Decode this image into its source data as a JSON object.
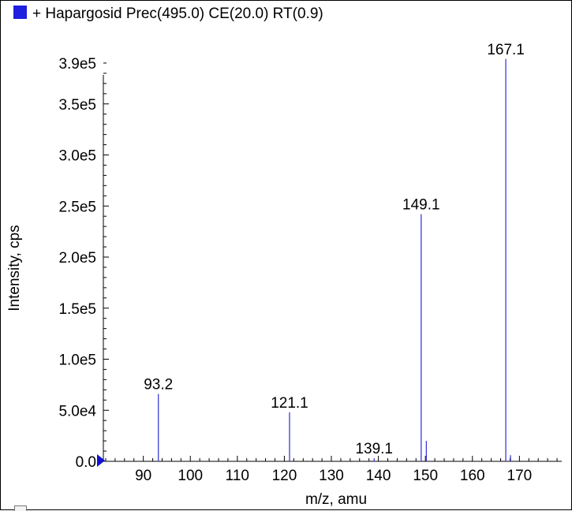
{
  "legend": {
    "label": "+ Hapargosid Prec(495.0) CE(20.0) RT(0.9)",
    "marker_color": "#1f1fe0"
  },
  "colors": {
    "peak": "#3d3dd4",
    "axis": "#000000",
    "triangle": "#1010d0"
  },
  "chart_data": {
    "type": "bar",
    "title": "+ Hapargosid Prec(495.0) CE(20.0) RT(0.9)",
    "xlabel": "m/z, amu",
    "ylabel": "Intensity, cps",
    "xlim": [
      81.5,
      179
    ],
    "ylim": [
      0,
      400000
    ],
    "x_ticks": [
      {
        "value": 90,
        "label": "90"
      },
      {
        "value": 100,
        "label": "100"
      },
      {
        "value": 110,
        "label": "110"
      },
      {
        "value": 120,
        "label": "120"
      },
      {
        "value": 130,
        "label": "130"
      },
      {
        "value": 140,
        "label": "140"
      },
      {
        "value": 150,
        "label": "150"
      },
      {
        "value": 160,
        "label": "160"
      },
      {
        "value": 170,
        "label": "170"
      }
    ],
    "y_ticks": [
      {
        "value": 0,
        "label": "0.0"
      },
      {
        "value": 50000,
        "label": "5.0e4"
      },
      {
        "value": 100000,
        "label": "1.0e5"
      },
      {
        "value": 150000,
        "label": "1.5e5"
      },
      {
        "value": 200000,
        "label": "2.0e5"
      },
      {
        "value": 250000,
        "label": "2.5e5"
      },
      {
        "value": 300000,
        "label": "3.0e5"
      },
      {
        "value": 350000,
        "label": "3.5e5"
      },
      {
        "value": 390000,
        "label": "3.9e5"
      }
    ],
    "peaks": [
      {
        "mz": 93.2,
        "intensity": 66000,
        "label": "93.2"
      },
      {
        "mz": 121.1,
        "intensity": 48000,
        "label": "121.1"
      },
      {
        "mz": 139.1,
        "intensity": 3000,
        "label": "139.1"
      },
      {
        "mz": 149.1,
        "intensity": 242000,
        "label": "149.1"
      },
      {
        "mz": 150.2,
        "intensity": 20000,
        "label": ""
      },
      {
        "mz": 167.1,
        "intensity": 394000,
        "label": "167.1"
      },
      {
        "mz": 168.1,
        "intensity": 6000,
        "label": ""
      }
    ],
    "grid": false
  }
}
